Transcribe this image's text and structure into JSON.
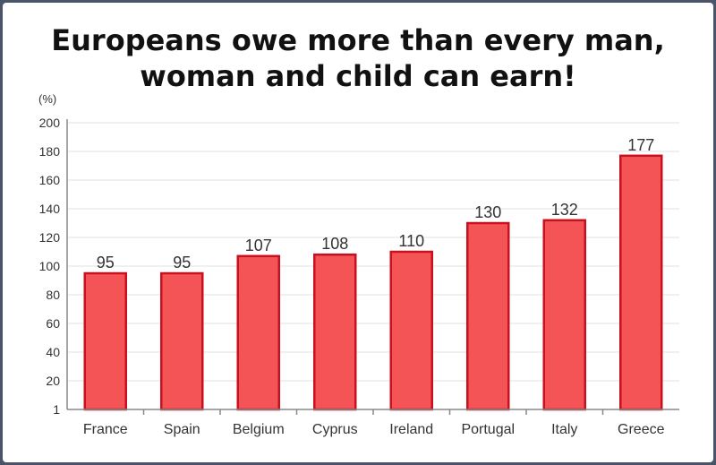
{
  "chart_data": {
    "type": "bar",
    "title_line1": "Europeans owe more than every man,",
    "title_line2": "woman and child can earn!",
    "unit_label": "(%)",
    "categories": [
      "France",
      "Spain",
      "Belgium",
      "Cyprus",
      "Ireland",
      "Portugal",
      "Italy",
      "Greece"
    ],
    "values": [
      95,
      95,
      107,
      108,
      110,
      130,
      132,
      177
    ],
    "value_labels": [
      "95",
      "95",
      "107",
      "108",
      "110",
      "130",
      "132",
      "177"
    ],
    "y_ticks": [
      1,
      20,
      40,
      60,
      80,
      100,
      120,
      140,
      160,
      180,
      200
    ],
    "ylim": [
      1,
      200
    ],
    "grid": true,
    "bar_fill": "#f55457",
    "bar_stroke": "#c8101e"
  }
}
